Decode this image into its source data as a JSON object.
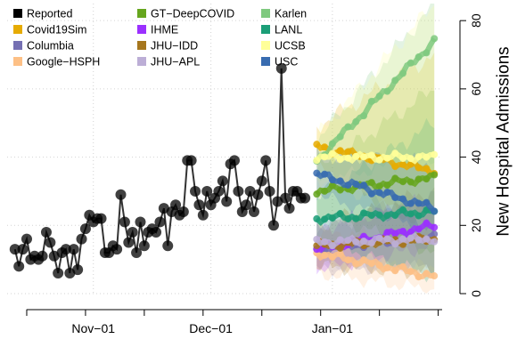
{
  "chart_data": {
    "type": "line",
    "title": "",
    "xlabel": "",
    "ylabel": "New Hospital Admissions",
    "x_tick_labels": [
      "Nov−01",
      "Dec−01",
      "Jan−01"
    ],
    "x_tick_dates": [
      "2020-11-01",
      "2020-12-01",
      "2021-01-01"
    ],
    "xlim": [
      "2020-10-10",
      "2021-01-29"
    ],
    "ylim": [
      0,
      85
    ],
    "y_ticks": [
      0,
      20,
      40,
      60,
      80
    ],
    "y_axis_position": "right",
    "grid": true,
    "legend_position": "top-left",
    "forecast_start": "2020-12-28",
    "forecast_end": "2021-01-27",
    "legend": [
      {
        "name": "Reported",
        "color": "#000000"
      },
      {
        "name": "Covid19Sim",
        "color": "#e6ab02"
      },
      {
        "name": "Columbia",
        "color": "#7570b3"
      },
      {
        "name": "Google−HSPH",
        "color": "#fdc086"
      },
      {
        "name": "GT−DeepCOVID",
        "color": "#66a61e"
      },
      {
        "name": "IHME",
        "color": "#9b30ff"
      },
      {
        "name": "JHU−IDD",
        "color": "#a6761d"
      },
      {
        "name": "JHU−APL",
        "color": "#bcaed6"
      },
      {
        "name": "Karlen",
        "color": "#7fc97f"
      },
      {
        "name": "LANL",
        "color": "#1b9e77"
      },
      {
        "name": "UCSB",
        "color": "#ffff99"
      },
      {
        "name": "USC",
        "color": "#386cb0"
      }
    ],
    "reported": {
      "dates": [
        "2020-10-12",
        "2020-10-13",
        "2020-10-14",
        "2020-10-15",
        "2020-10-16",
        "2020-10-17",
        "2020-10-18",
        "2020-10-19",
        "2020-10-20",
        "2020-10-21",
        "2020-10-22",
        "2020-10-23",
        "2020-10-24",
        "2020-10-25",
        "2020-10-26",
        "2020-10-27",
        "2020-10-28",
        "2020-10-29",
        "2020-10-30",
        "2020-10-31",
        "2020-11-01",
        "2020-11-02",
        "2020-11-03",
        "2020-11-04",
        "2020-11-05",
        "2020-11-06",
        "2020-11-07",
        "2020-11-08",
        "2020-11-09",
        "2020-11-10",
        "2020-11-11",
        "2020-11-12",
        "2020-11-13",
        "2020-11-14",
        "2020-11-15",
        "2020-11-16",
        "2020-11-17",
        "2020-11-18",
        "2020-11-19",
        "2020-11-20",
        "2020-11-21",
        "2020-11-22",
        "2020-11-23",
        "2020-11-24",
        "2020-11-25",
        "2020-11-26",
        "2020-11-27",
        "2020-11-28",
        "2020-11-29",
        "2020-11-30",
        "2020-12-01",
        "2020-12-02",
        "2020-12-03",
        "2020-12-04",
        "2020-12-05",
        "2020-12-06",
        "2020-12-07",
        "2020-12-08",
        "2020-12-09",
        "2020-12-10",
        "2020-12-11",
        "2020-12-12",
        "2020-12-13",
        "2020-12-14",
        "2020-12-15",
        "2020-12-16",
        "2020-12-17",
        "2020-12-18",
        "2020-12-19",
        "2020-12-20",
        "2020-12-21",
        "2020-12-22",
        "2020-12-23",
        "2020-12-24",
        "2020-12-25"
      ],
      "values": [
        13,
        8,
        13,
        16,
        10,
        11,
        10,
        11,
        18,
        15,
        11,
        6,
        12,
        13,
        6,
        13,
        7,
        16,
        19,
        23,
        21,
        22,
        22,
        12,
        12,
        14,
        13,
        29,
        21,
        15,
        18,
        12,
        21,
        14,
        18,
        19,
        18,
        21,
        25,
        14,
        24,
        26,
        23,
        24,
        39,
        39,
        30,
        26,
        23,
        30,
        26,
        28,
        30,
        33,
        27,
        38,
        39,
        30,
        24,
        26,
        30,
        24,
        29,
        33,
        39,
        30,
        20,
        27,
        66,
        28,
        25,
        30,
        30,
        28,
        28
      ]
    },
    "series": [
      {
        "name": "Reported",
        "type": "observed"
      },
      {
        "name": "Covid19Sim",
        "median_start": 43,
        "median_end": 36,
        "lower_end": 18,
        "upper_end": 70
      },
      {
        "name": "Columbia",
        "median_start": 13,
        "median_end": 17,
        "lower_end": 8,
        "upper_end": 28
      },
      {
        "name": "Google−HSPH",
        "median_start": 12,
        "median_end": 5,
        "lower_end": 1,
        "upper_end": 16
      },
      {
        "name": "GT−DeepCOVID",
        "median_start": 30,
        "median_end": 34,
        "lower_end": 12,
        "upper_end": 60
      },
      {
        "name": "IHME",
        "median_start": 13,
        "median_end": 20,
        "lower_end": 14,
        "upper_end": 28
      },
      {
        "name": "JHU−IDD",
        "median_start": 14,
        "median_end": 16,
        "lower_end": 6,
        "upper_end": 30
      },
      {
        "name": "JHU−APL",
        "median_start": 15,
        "median_end": 16,
        "lower_end": 8,
        "upper_end": 26
      },
      {
        "name": "Karlen",
        "median_start": 39,
        "median_end": 74,
        "lower_end": 40,
        "upper_end": 85
      },
      {
        "name": "LANL",
        "median_start": 22,
        "median_end": 24,
        "lower_end": 5,
        "upper_end": 50
      },
      {
        "name": "UCSB",
        "median_start": 40,
        "median_end": 40,
        "lower_end": 20,
        "upper_end": 85
      },
      {
        "name": "USC",
        "median_start": 35,
        "median_end": 25,
        "lower_end": 18,
        "upper_end": 38
      }
    ]
  }
}
